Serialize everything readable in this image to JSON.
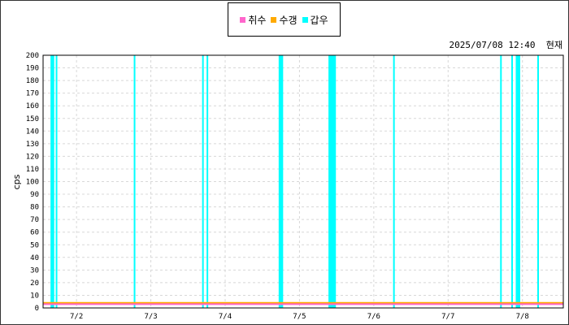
{
  "legend": {
    "items": [
      {
        "label": "취수",
        "color": "#ff66cc"
      },
      {
        "label": "수갱",
        "color": "#ffaa00"
      },
      {
        "label": "갑우",
        "color": "#00ffff"
      }
    ]
  },
  "timestamp": {
    "date_time": "2025/07/08 12:40",
    "suffix": "현재"
  },
  "chart_data": {
    "type": "bar",
    "ylabel": "cps",
    "ylim": [
      0,
      200
    ],
    "yticks": [
      0,
      10,
      20,
      30,
      40,
      50,
      60,
      70,
      80,
      90,
      100,
      110,
      120,
      130,
      140,
      150,
      160,
      170,
      180,
      190,
      200
    ],
    "x_range_days": [
      1.55,
      8.55
    ],
    "xticks": [
      {
        "day": 2,
        "label": "7/2"
      },
      {
        "day": 3,
        "label": "7/3"
      },
      {
        "day": 4,
        "label": "7/4"
      },
      {
        "day": 5,
        "label": "7/5"
      },
      {
        "day": 6,
        "label": "7/6"
      },
      {
        "day": 7,
        "label": "7/7"
      },
      {
        "day": 8,
        "label": "7/8"
      }
    ],
    "grid": true,
    "series": [
      {
        "name": "갑우",
        "color": "#00ffff",
        "type": "bar",
        "bars": [
          {
            "start_day": 1.65,
            "end_day": 1.7,
            "value": 200
          },
          {
            "start_day": 1.72,
            "end_day": 1.73,
            "value": 200
          },
          {
            "start_day": 2.77,
            "end_day": 2.79,
            "value": 200
          },
          {
            "start_day": 3.69,
            "end_day": 3.7,
            "value": 200
          },
          {
            "start_day": 3.75,
            "end_day": 3.77,
            "value": 200
          },
          {
            "start_day": 4.72,
            "end_day": 4.78,
            "value": 200
          },
          {
            "start_day": 5.39,
            "end_day": 5.49,
            "value": 200
          },
          {
            "start_day": 6.26,
            "end_day": 6.28,
            "value": 200
          },
          {
            "start_day": 7.7,
            "end_day": 7.71,
            "value": 200
          },
          {
            "start_day": 7.85,
            "end_day": 7.86,
            "value": 200
          },
          {
            "start_day": 7.91,
            "end_day": 7.97,
            "value": 200
          },
          {
            "start_day": 8.2,
            "end_day": 8.22,
            "value": 200
          }
        ]
      },
      {
        "name": "수갱",
        "color": "#ffaa00",
        "type": "line",
        "value": 4
      },
      {
        "name": "취수",
        "color": "#ff66cc",
        "type": "line",
        "value": 3
      }
    ]
  }
}
